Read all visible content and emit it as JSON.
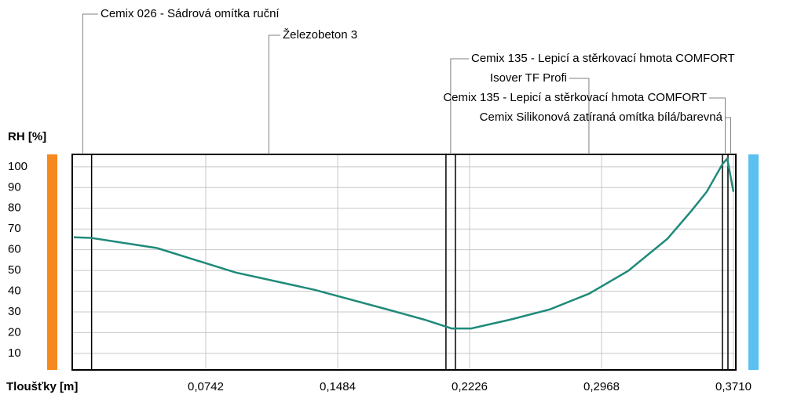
{
  "chart_data": {
    "type": "line",
    "ylabel": "RH [%]",
    "xlabel": "Tloušťky [m]",
    "xlim": [
      0,
      0.371
    ],
    "ylim": [
      2,
      106
    ],
    "yticks": [
      10,
      20,
      30,
      40,
      50,
      60,
      70,
      80,
      90,
      100
    ],
    "xticks": [
      {
        "value": 0.0742,
        "label": "0,0742"
      },
      {
        "value": 0.1484,
        "label": "0,1484"
      },
      {
        "value": 0.2226,
        "label": "0,2226"
      },
      {
        "value": 0.2968,
        "label": "0,2968"
      },
      {
        "value": 0.371,
        "label": "0,3710"
      }
    ],
    "grid": true,
    "layers": [
      {
        "name": "Cemix 026 - Sádrová omítka ruční",
        "end": 0.01
      },
      {
        "name": "Železobeton 3",
        "end": 0.2093
      },
      {
        "name": "Cemix 135 - Lepicí a stěrkovací hmota COMFORT",
        "end": 0.2146
      },
      {
        "name": "Isover TF Profi",
        "end": 0.3648
      },
      {
        "name": "Cemix 135 - Lepicí a stěrkovací hmota COMFORT",
        "end": 0.3679
      },
      {
        "name": "Cemix Silikonová zatíraná omítka bílá/barevná",
        "end": 0.371
      }
    ],
    "series": [
      {
        "name": "RH",
        "color": "#1f8a7a",
        "x": [
          0,
          0.0097,
          0.0468,
          0.091,
          0.1352,
          0.1793,
          0.197,
          0.2125,
          0.2235,
          0.2456,
          0.2677,
          0.2898,
          0.3118,
          0.3339,
          0.3472,
          0.356,
          0.3648,
          0.3675,
          0.371
        ],
        "values": [
          66,
          65.7,
          60.8,
          49,
          40.7,
          30.5,
          26.3,
          22,
          22,
          26.3,
          31.2,
          38.8,
          49.8,
          65.3,
          78.6,
          88,
          101.3,
          104,
          88
        ]
      }
    ],
    "inside_color": "#f5891f",
    "outside_color": "#5bc0ef"
  }
}
